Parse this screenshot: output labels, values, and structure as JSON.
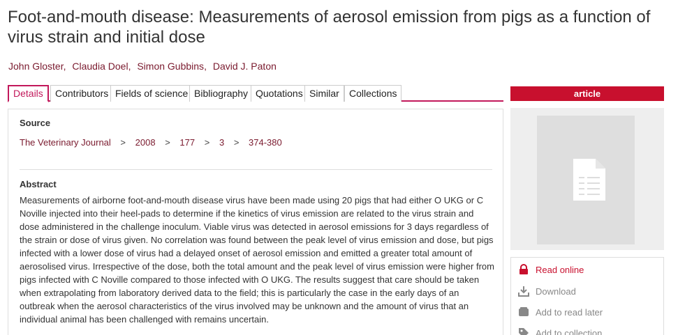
{
  "article": {
    "title": "Foot-and-mouth disease: Measurements of aerosol emission from pigs as a function of virus strain and initial dose",
    "authors": [
      "John Gloster",
      "Claudia Doel",
      "Simon Gubbins",
      "David J. Paton"
    ]
  },
  "tabs": [
    {
      "label": "Details",
      "active": true
    },
    {
      "label": "Contributors"
    },
    {
      "label": "Fields of science"
    },
    {
      "label": "Bibliography"
    },
    {
      "label": "Quotations"
    },
    {
      "label": "Similar"
    },
    {
      "label": "Collections"
    }
  ],
  "source": {
    "heading": "Source",
    "journal": "The Veterinary Journal",
    "year": "2008",
    "volume": "177",
    "issue": "3",
    "pages": "374-380",
    "separator": ">"
  },
  "abstract": {
    "heading": "Abstract",
    "text": "Measurements of airborne foot-and-mouth disease virus have been made using 20 pigs that had either O UKG or C Noville injected into their heel-pads to determine if the kinetics of virus emission are related to the virus strain and dose administered in the challenge inoculum. Viable virus was detected in aerosol emissions for 3 days regardless of the strain or dose of virus given. No correlation was found between the peak level of virus emission and dose, but pigs infected with a lower dose of virus had a delayed onset of aerosol emission and emitted a greater total amount of aerosolised virus. Irrespective of the dose, both the total amount and the peak level of virus emission were higher from pigs infected with C Noville compared to those infected with O UKG. The results suggest that care should be taken when extrapolating from laboratory derived data to the field; this is particularly the case in the early days of an outbreak when the aerosol characteristics of the virus involved may be unknown and the amount of virus that an individual animal has been challenged with remains uncertain."
  },
  "sidebar": {
    "type_label": "article",
    "cover_icon": "document-icon",
    "actions": [
      {
        "label": "Read online",
        "icon": "lock-icon"
      },
      {
        "label": "Download",
        "icon": "download-icon"
      },
      {
        "label": "Add to read later",
        "icon": "bookmark-icon"
      },
      {
        "label": "Add to collection",
        "icon": "tag-icon"
      }
    ]
  },
  "colors": {
    "accent": "#c8102e",
    "link": "#7a1a2e",
    "muted": "#888888"
  }
}
